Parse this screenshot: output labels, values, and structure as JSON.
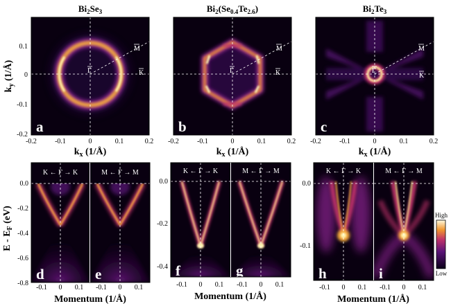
{
  "figure_type": "ARPES figure: constant-energy Fermi surface maps and band dispersion cuts",
  "top_row": {
    "titles": {
      "a": "Bi2Se3",
      "b": "Bi2(Se0.4Te2.6)",
      "c": "Bi2Te3"
    },
    "panel_labels": [
      "a",
      "b",
      "c"
    ],
    "xlabel": "k",
    "xlabel_sub": "x",
    "unit": "(1/Å)",
    "ylabel": "k",
    "ylabel_sub": "y",
    "x_ticks": [
      "-0.2",
      "-0.1",
      "0",
      "0.1",
      "0.2"
    ],
    "y_ticks": [
      "0.1",
      "0",
      "-0.1",
      "-0.2"
    ],
    "points": {
      "gamma": "Γ",
      "m": "M",
      "k": "K"
    }
  },
  "bottom_row": {
    "panel_labels": [
      "d",
      "e",
      "f",
      "g",
      "h",
      "i"
    ],
    "cuts": {
      "d": "K ← Γ → K",
      "e": "M ← Γ → M",
      "f": "K ← Γ → K",
      "g": "M ← Γ → M",
      "h": "K ← Γ → K",
      "i": "M ← Γ → M"
    },
    "xlabel": "Momentum (1/Å)",
    "ylabel": "E - E",
    "ylabel_sub": "F",
    "ylabel_unit": "(eV)",
    "x_ticks": [
      "-0.1",
      "0",
      "0.1"
    ],
    "y_ticks_group1": [
      "0.0",
      "-0.2",
      "-0.4",
      "-0.6",
      "-0.8"
    ],
    "y_ticks_group2": [
      "0.0",
      "-0.2",
      "-0.4"
    ],
    "y_ticks_group3": [
      "0.0",
      "-0.1"
    ]
  },
  "colorbar": {
    "high": "High",
    "low": "Low"
  },
  "colors": {
    "dark": "#090010",
    "mid": "#7a1a88",
    "bright": "#f4a93c",
    "peak": "#fff4b0"
  }
}
